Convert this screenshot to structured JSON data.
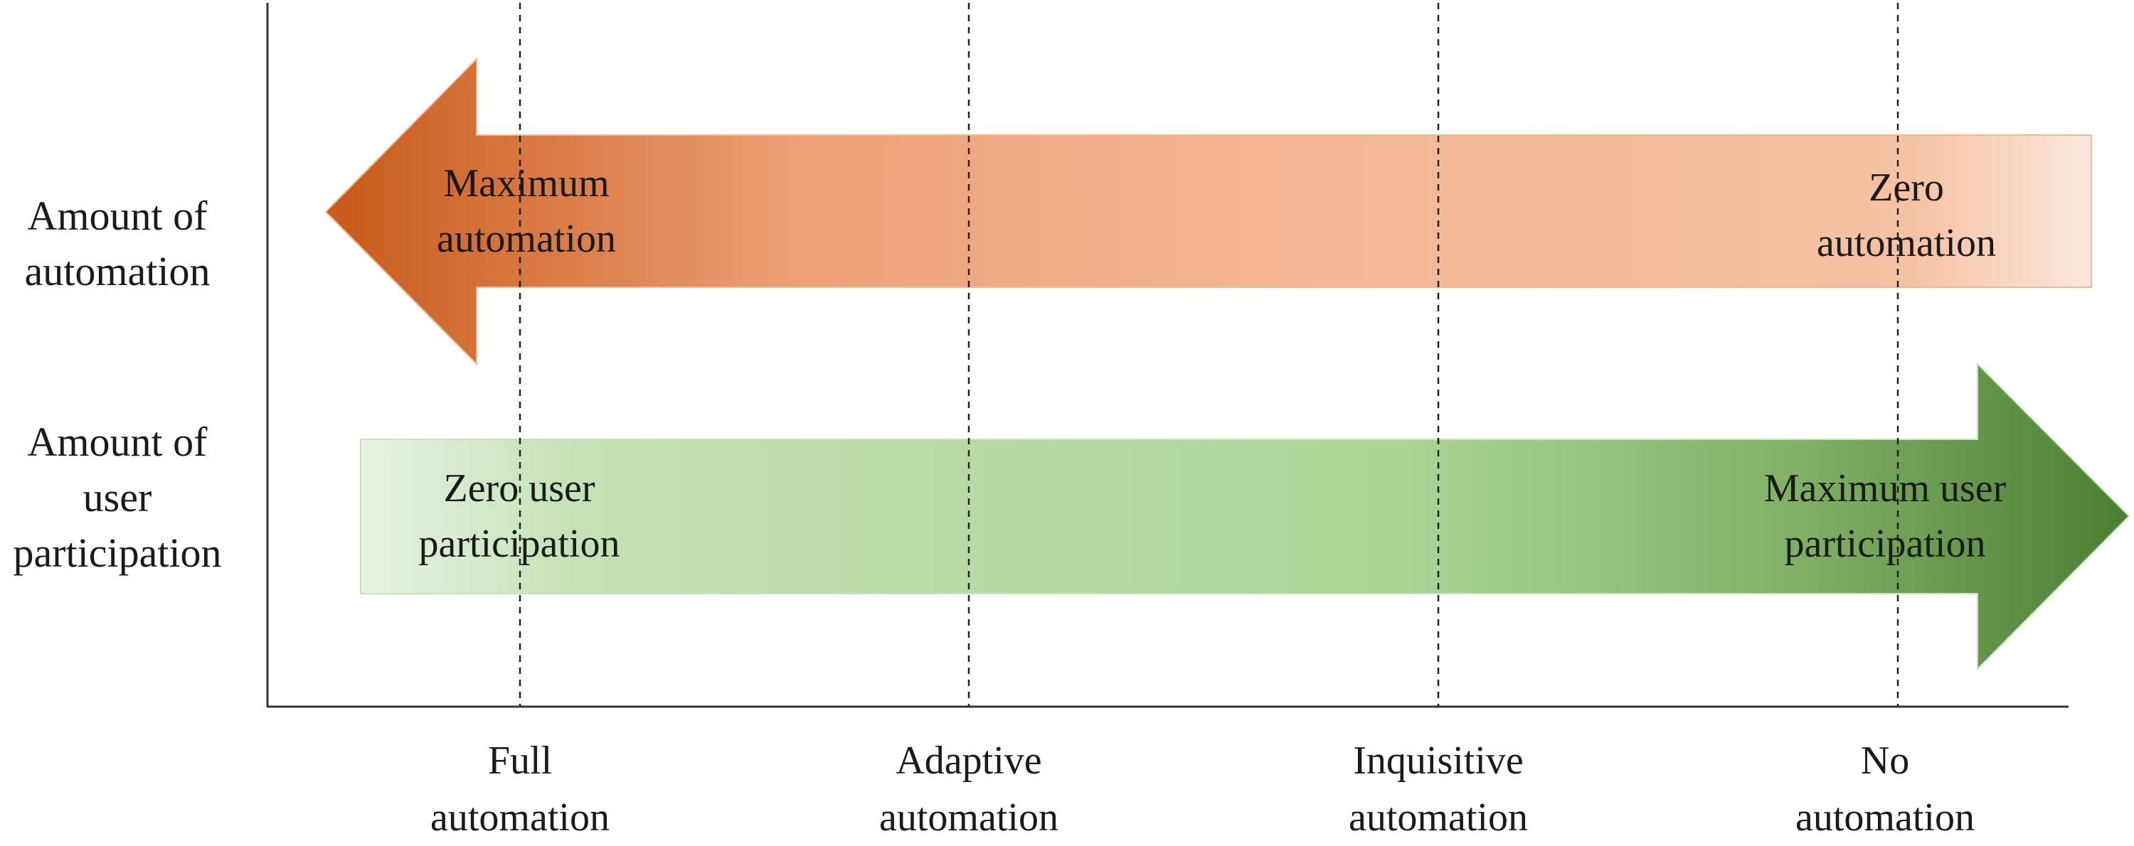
{
  "y_axis_labels": {
    "automation": [
      "Amount of",
      "automation"
    ],
    "participation": [
      "Amount of",
      "user",
      "participation"
    ]
  },
  "automation_arrow": {
    "left_label": [
      "Maximum",
      "automation"
    ],
    "right_label": [
      "Zero",
      "automation"
    ],
    "colors": {
      "dark": "#C85A1A",
      "mid": "#F2B08A",
      "light": "#FBE6DA"
    }
  },
  "participation_arrow": {
    "left_label": [
      "Zero user",
      "participation"
    ],
    "right_label": [
      "Maximum user",
      "participation"
    ],
    "colors": {
      "light": "#E6F2DF",
      "mid": "#ABD497",
      "dark": "#4E8035"
    }
  },
  "x_axis_labels": [
    [
      "Full",
      "automation"
    ],
    [
      "Adaptive",
      "automation"
    ],
    [
      "Inquisitive",
      "automation"
    ],
    [
      "No",
      "automation"
    ]
  ]
}
